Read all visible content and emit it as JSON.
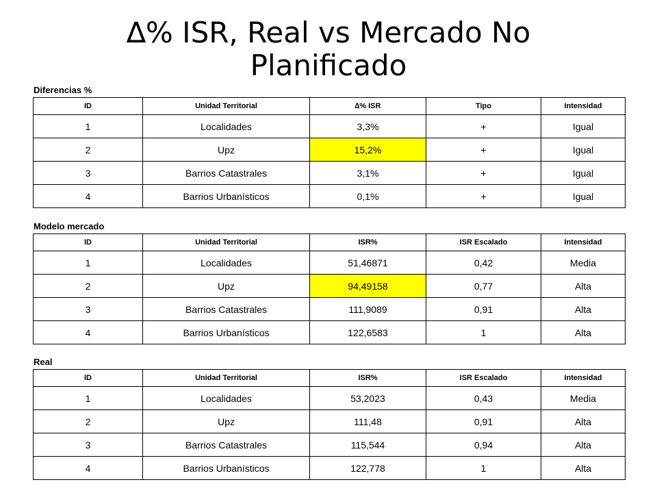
{
  "title": {
    "line1": "∆% ISR, Real vs Mercado No",
    "line2": "Planificado"
  },
  "colors": {
    "highlight": "#ffff00"
  },
  "tables": [
    {
      "label": "Diferencias %",
      "headers": [
        "ID",
        "Unidad Territorial",
        "∆% ISR",
        "Tipo",
        "Intensidad"
      ],
      "rows": [
        [
          "1",
          "Localidades",
          "3,3%",
          "+",
          "Igual"
        ],
        [
          "2",
          "Upz",
          "15,2%",
          "+",
          "Igual"
        ],
        [
          "3",
          "Barrios Catastrales",
          "3,1%",
          "+",
          "Igual"
        ],
        [
          "4",
          "Barrios Urbanísticos",
          "0,1%",
          "+",
          "Igual"
        ]
      ]
    },
    {
      "label": "Modelo mercado",
      "headers": [
        "ID",
        "Unidad Territorial",
        "ISR%",
        "ISR Escalado",
        "Intensidad"
      ],
      "rows": [
        [
          "1",
          "Localidades",
          "51,46871",
          "0,42",
          "Media"
        ],
        [
          "2",
          "Upz",
          "94,49158",
          "0,77",
          "Alta"
        ],
        [
          "3",
          "Barrios Catastrales",
          "111,9089",
          "0,91",
          "Alta"
        ],
        [
          "4",
          "Barrios Urbanísticos",
          "122,6583",
          "1",
          "Alta"
        ]
      ]
    },
    {
      "label": "Real",
      "headers": [
        "ID",
        "Unidad Territorial",
        "ISR%",
        "ISR Escalado",
        "Intensidad"
      ],
      "rows": [
        [
          "1",
          "Localidades",
          "53,2023",
          "0,43",
          "Media"
        ],
        [
          "2",
          "Upz",
          "111,48",
          "0,91",
          "Alta"
        ],
        [
          "3",
          "Barrios Catastrales",
          "115,544",
          "0,94",
          "Alta"
        ],
        [
          "4",
          "Barrios Urbanísticos",
          "122,778",
          "1",
          "Alta"
        ]
      ]
    }
  ]
}
